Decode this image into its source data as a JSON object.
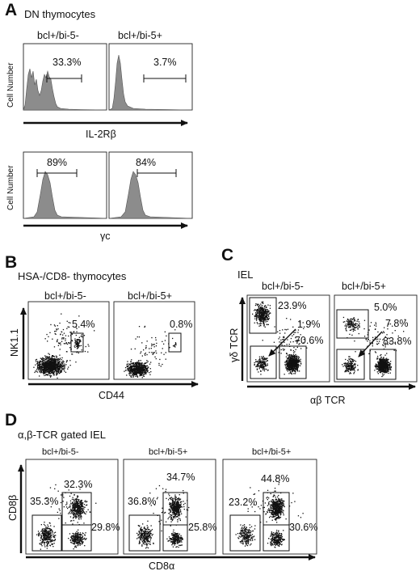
{
  "panels": {
    "A": {
      "letter": "A",
      "title": "DN thymocytes",
      "ylabel": "Cell Number",
      "xlabels": [
        "IL-2Rβ",
        "γc"
      ],
      "conditions": [
        "bcl+/bi-5-",
        "bcl+/bi-5+"
      ],
      "percentages": [
        [
          "33.3%",
          "3.7%"
        ],
        [
          "89%",
          "84%"
        ]
      ]
    },
    "B": {
      "letter": "B",
      "title": "HSA-/CD8- thymocytes",
      "ylabel": "NK1.1",
      "xlabel": "CD44",
      "conditions": [
        "bcl+/bi-5-",
        "bcl+/bi-5+"
      ],
      "percentages": [
        "5.4%",
        "0.8%"
      ]
    },
    "C": {
      "letter": "C",
      "title": "IEL",
      "ylabel": "γδ TCR",
      "xlabel": "αβ TCR",
      "conditions": [
        "bcl+/bi-5-",
        "bcl+/bi-5+"
      ],
      "percentages": [
        [
          "23.9%",
          "1.9%",
          "70.6%"
        ],
        [
          "5.0%",
          "7.8%",
          "83.8%"
        ]
      ]
    },
    "D": {
      "letter": "D",
      "title": "α,β-TCR gated IEL",
      "ylabel": "CD8β",
      "xlabel": "CD8α",
      "conditions": [
        "bcl+/bi-5-",
        "bcl+/bi-5+",
        "bcl+/bi-5+"
      ],
      "percentages": [
        [
          "35.3%",
          "32.3%",
          "29.8%"
        ],
        [
          "36.8%",
          "34.7%",
          "25.8%"
        ],
        [
          "23.2%",
          "44.8%",
          "30.6%"
        ]
      ]
    }
  },
  "colors": {
    "histogram_fill": "#8c8c8c",
    "ink": "#111111"
  }
}
